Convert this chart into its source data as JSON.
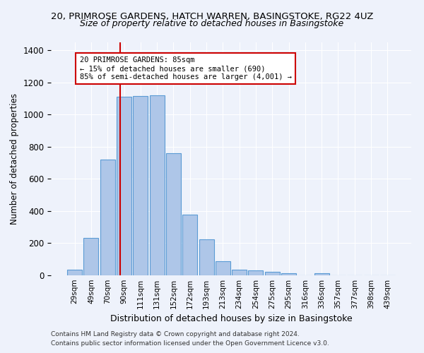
{
  "title1": "20, PRIMROSE GARDENS, HATCH WARREN, BASINGSTOKE, RG22 4UZ",
  "title2": "Size of property relative to detached houses in Basingstoke",
  "xlabel": "Distribution of detached houses by size in Basingstoke",
  "ylabel": "Number of detached properties",
  "categories": [
    "29sqm",
    "49sqm",
    "70sqm",
    "90sqm",
    "111sqm",
    "131sqm",
    "152sqm",
    "172sqm",
    "193sqm",
    "213sqm",
    "234sqm",
    "254sqm",
    "275sqm",
    "295sqm",
    "316sqm",
    "336sqm",
    "357sqm",
    "377sqm",
    "398sqm",
    "439sqm"
  ],
  "values": [
    35,
    235,
    720,
    1110,
    1115,
    1120,
    760,
    380,
    225,
    90,
    37,
    30,
    22,
    15,
    0,
    14,
    0,
    0,
    0,
    0
  ],
  "bar_color": "#aec6e8",
  "bar_edge_color": "#5b9bd5",
  "vline_color": "#cc0000",
  "annotation_text": "20 PRIMROSE GARDENS: 85sqm\n← 15% of detached houses are smaller (690)\n85% of semi-detached houses are larger (4,001) →",
  "annotation_box_color": "#cc0000",
  "annotation_text_color": "#000000",
  "ylim": [
    0,
    1450
  ],
  "footnote1": "Contains HM Land Registry data © Crown copyright and database right 2024.",
  "footnote2": "Contains public sector information licensed under the Open Government Licence v3.0.",
  "background_color": "#eef2fb",
  "grid_color": "#ffffff",
  "title1_fontsize": 9.5,
  "title2_fontsize": 9
}
